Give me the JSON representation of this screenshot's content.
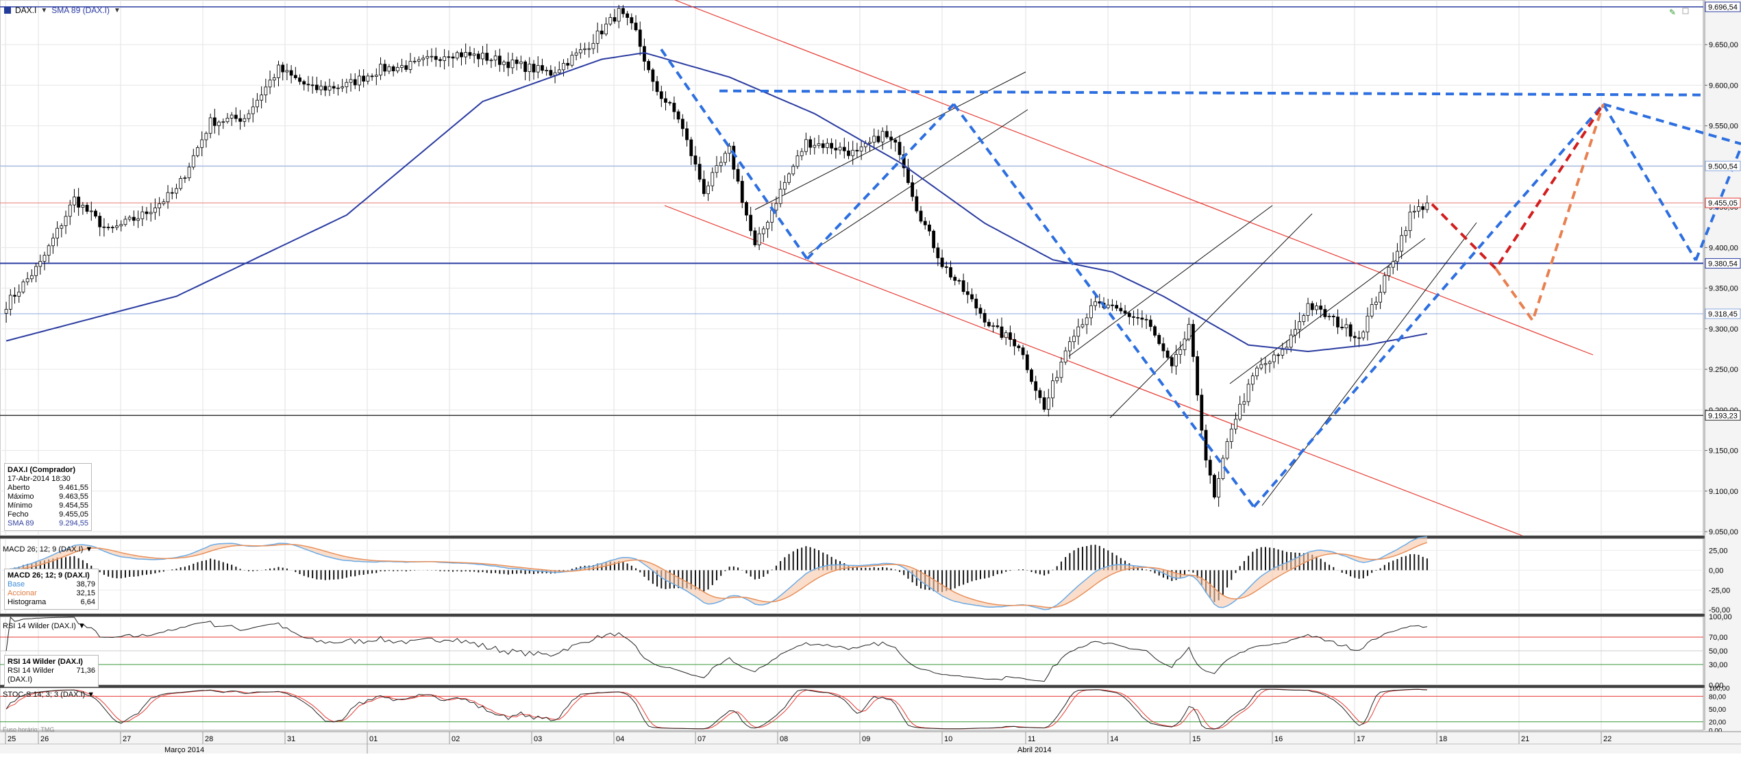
{
  "header": {
    "symbol": "DAX.I",
    "indicator": "SMA 89 (DAX.I)"
  },
  "info_box": {
    "title": "DAX.I (Comprador)",
    "datetime": "17-Abr-2014 18:30",
    "rows": [
      {
        "label": "Aberto",
        "value": "9.461,55"
      },
      {
        "label": "Máximo",
        "value": "9.463,55"
      },
      {
        "label": "Mínimo",
        "value": "9.454,55"
      },
      {
        "label": "Fecho",
        "value": "9.455,05"
      },
      {
        "label": "SMA 89",
        "value": "9.294,55"
      }
    ]
  },
  "macd": {
    "title": "MACD 26; 12; 9 (DAX.I)",
    "legend_title": "MACD 26; 12; 9 (DAX.I)",
    "rows": [
      {
        "label": "Base",
        "value": "38,79"
      },
      {
        "label": "Accionar",
        "value": "32,15"
      },
      {
        "label": "Histograma",
        "value": "6,64"
      }
    ],
    "axis_labels": [
      "25,00",
      "0,00",
      "-25,00",
      "-50,00"
    ]
  },
  "rsi": {
    "title": "RSI 14 Wilder (DAX.I)",
    "legend_title": "RSI 14 Wilder (DAX.I)",
    "value_label": "RSI 14 Wilder (DAX.I)",
    "value": "71,36",
    "axis_labels": [
      "100,00",
      "70,00",
      "50,00",
      "30,00",
      "0,00"
    ]
  },
  "stoch": {
    "title": "STOC-S 14; 3; 3 (DAX.I)",
    "axis_labels": [
      "100,00",
      "80,00",
      "50,00",
      "20,00",
      "0,00"
    ]
  },
  "footer_note": "Fuso horário: TMG",
  "colors": {
    "candle": "#000000",
    "sma": "#2a3ba0",
    "channel_red": "#e63a32",
    "pattern_blue": "#2d6fe0",
    "proj_red": "#d21e1e",
    "proj_orange": "#e88050",
    "macd_base": "#6aaae6",
    "macd_signal": "#e8905a",
    "rsi_line": "#222222",
    "rsi_upper": "#e63a32",
    "rsi_lower": "#3a9a3a",
    "stoch_k": "#222222",
    "stoch_d": "#e63a32"
  },
  "chart_data": {
    "type": "candlestick",
    "title": "DAX.I",
    "y_axis_labels": [
      "9.650,00",
      "9.600,00",
      "9.550,00",
      "9.500,00",
      "9.450,00",
      "9.400,00",
      "9.350,00",
      "9.300,00",
      "9.250,00",
      "9.200,00",
      "9.150,00",
      "9.100,00",
      "9.050,00"
    ],
    "ylim": [
      9045,
      9705
    ],
    "price_tags": [
      {
        "label": "9.696,54",
        "value": 9696.54,
        "color": "#2a3ba0"
      },
      {
        "label": "9.500,54",
        "value": 9500.54,
        "color": "#8aa8e0"
      },
      {
        "label": "9.455,05",
        "value": 9455.05,
        "color": "#e63a32"
      },
      {
        "label": "9.380,54",
        "value": 9380.54,
        "color": "#2a3ba0"
      },
      {
        "label": "9.318,45",
        "value": 9318.45,
        "color": "#8aa8e0"
      },
      {
        "label": "9.193,23",
        "value": 9193.23,
        "color": "#333333"
      }
    ],
    "x_day_labels": [
      "25",
      "26",
      "27",
      "28",
      "31",
      "01",
      "02",
      "03",
      "04",
      "07",
      "08",
      "09",
      "10",
      "11",
      "14",
      "15",
      "16",
      "17",
      "18",
      "21",
      "22"
    ],
    "x_month_labels": [
      "Março 2014",
      "Abril 2014"
    ],
    "close_anchors": [
      [
        0,
        9330
      ],
      [
        8,
        9380
      ],
      [
        16,
        9460
      ],
      [
        24,
        9420
      ],
      [
        32,
        9440
      ],
      [
        40,
        9470
      ],
      [
        48,
        9555
      ],
      [
        56,
        9560
      ],
      [
        64,
        9620
      ],
      [
        72,
        9595
      ],
      [
        80,
        9600
      ],
      [
        88,
        9620
      ],
      [
        96,
        9625
      ],
      [
        104,
        9640
      ],
      [
        112,
        9635
      ],
      [
        120,
        9625
      ],
      [
        128,
        9615
      ],
      [
        136,
        9645
      ],
      [
        144,
        9690
      ],
      [
        148,
        9665
      ],
      [
        152,
        9600
      ],
      [
        158,
        9560
      ],
      [
        164,
        9470
      ],
      [
        170,
        9520
      ],
      [
        176,
        9400
      ],
      [
        182,
        9470
      ],
      [
        188,
        9530
      ],
      [
        194,
        9525
      ],
      [
        200,
        9515
      ],
      [
        206,
        9540
      ],
      [
        210,
        9520
      ],
      [
        214,
        9450
      ],
      [
        220,
        9380
      ],
      [
        226,
        9340
      ],
      [
        232,
        9300
      ],
      [
        238,
        9280
      ],
      [
        244,
        9200
      ],
      [
        250,
        9290
      ],
      [
        256,
        9330
      ],
      [
        262,
        9320
      ],
      [
        268,
        9310
      ],
      [
        274,
        9250
      ],
      [
        278,
        9300
      ],
      [
        282,
        9140
      ],
      [
        284,
        9090
      ],
      [
        288,
        9180
      ],
      [
        294,
        9250
      ],
      [
        300,
        9270
      ],
      [
        306,
        9330
      ],
      [
        312,
        9310
      ],
      [
        318,
        9290
      ],
      [
        324,
        9360
      ],
      [
        330,
        9440
      ],
      [
        334,
        9455
      ]
    ],
    "sma_anchors": [
      [
        0,
        9285
      ],
      [
        40,
        9340
      ],
      [
        80,
        9440
      ],
      [
        112,
        9580
      ],
      [
        140,
        9632
      ],
      [
        150,
        9640
      ],
      [
        170,
        9610
      ],
      [
        190,
        9565
      ],
      [
        210,
        9505
      ],
      [
        230,
        9430
      ],
      [
        246,
        9385
      ],
      [
        260,
        9370
      ],
      [
        272,
        9340
      ],
      [
        282,
        9310
      ],
      [
        292,
        9280
      ],
      [
        306,
        9272
      ],
      [
        320,
        9280
      ],
      [
        334,
        9294
      ]
    ],
    "macd_series": [
      {
        "name": "Base",
        "values": "computed from close"
      },
      {
        "name": "Accionar",
        "values": "computed from close"
      },
      {
        "name": "Histograma",
        "values": "computed from close"
      }
    ],
    "last_values": {
      "close": 9455.05,
      "sma89": 9294.55,
      "macd_base": 38.79,
      "macd_signal": 32.15,
      "macd_hist": 6.64,
      "rsi": 71.36
    },
    "xlabel": "",
    "ylabel": "",
    "grid": true
  }
}
